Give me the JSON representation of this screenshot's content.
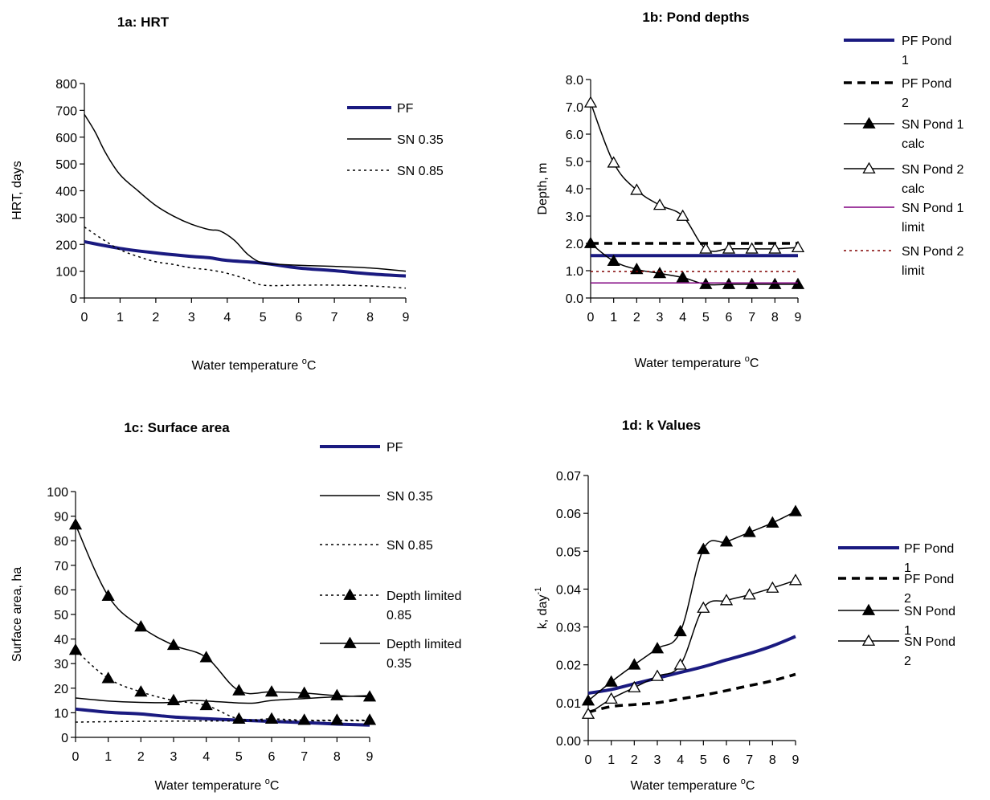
{
  "colors": {
    "pf": "#1a1a80",
    "black": "#000000",
    "sn_limit_1": "#800080",
    "sn_limit_2": "#800000"
  },
  "chart_data": [
    {
      "id": "1a",
      "type": "line",
      "title": "1a:  HRT",
      "xlabel": "Water temperature",
      "xlabel_unit": "oC",
      "ylabel": "HRT, days",
      "xlim": [
        0,
        9
      ],
      "ylim": [
        0,
        800
      ],
      "xticks": [
        "0",
        "1",
        "2",
        "3",
        "4",
        "5",
        "6",
        "7",
        "8",
        "9"
      ],
      "yticks": [
        "0",
        "100",
        "200",
        "300",
        "400",
        "500",
        "600",
        "700",
        "800"
      ],
      "series": [
        {
          "name": "PF",
          "style": "thick-blue",
          "x": [
            0,
            1,
            2,
            3,
            3.5,
            4,
            5,
            6,
            7,
            8,
            9
          ],
          "y": [
            210,
            185,
            168,
            155,
            150,
            140,
            130,
            112,
            102,
            90,
            82
          ]
        },
        {
          "name": "SN 0.35",
          "style": "solid",
          "x": [
            0,
            0.3,
            0.6,
            1,
            1.5,
            2,
            2.5,
            3,
            3.5,
            3.8,
            4.2,
            4.6,
            5,
            5.5,
            6,
            7,
            8,
            9
          ],
          "y": [
            685,
            620,
            540,
            460,
            400,
            345,
            305,
            275,
            255,
            250,
            215,
            160,
            130,
            125,
            122,
            118,
            112,
            100
          ]
        },
        {
          "name": "SN 0.85",
          "style": "dotted",
          "x": [
            0,
            0.5,
            1,
            1.5,
            2,
            2.5,
            3,
            3.5,
            4,
            4.5,
            5,
            6,
            7,
            8,
            9
          ],
          "y": [
            265,
            220,
            180,
            155,
            135,
            125,
            112,
            105,
            92,
            72,
            48,
            48,
            48,
            45,
            37
          ]
        }
      ]
    },
    {
      "id": "1b",
      "type": "line",
      "title": "1b: Pond depths",
      "xlabel": "Water temperature",
      "xlabel_unit": "oC",
      "ylabel": "Depth,  m",
      "xlim": [
        0,
        9
      ],
      "ylim": [
        0,
        8
      ],
      "xticks": [
        "0",
        "1",
        "2",
        "3",
        "4",
        "5",
        "6",
        "7",
        "8",
        "9"
      ],
      "yticks": [
        "0.0",
        "1.0",
        "2.0",
        "3.0",
        "4.0",
        "5.0",
        "6.0",
        "7.0",
        "8.0"
      ],
      "series": [
        {
          "name": "PF Pond 1",
          "style": "thick-blue",
          "x": [
            0,
            9
          ],
          "y": [
            1.55,
            1.55
          ]
        },
        {
          "name": "PF Pond 2",
          "style": "thick-dashed",
          "x": [
            0,
            9
          ],
          "y": [
            2.0,
            2.0
          ]
        },
        {
          "name": "SN Pond 1 calc",
          "style": "filled-triangle",
          "x": [
            0,
            1,
            2,
            3,
            4,
            5,
            6,
            7,
            8,
            9
          ],
          "y": [
            2.0,
            1.35,
            1.05,
            0.9,
            0.75,
            0.5,
            0.5,
            0.5,
            0.5,
            0.5
          ]
        },
        {
          "name": "SN Pond 2 calc",
          "style": "open-triangle",
          "x": [
            0,
            1,
            2,
            3,
            4,
            5,
            6,
            7,
            8,
            9
          ],
          "y": [
            7.15,
            4.95,
            3.95,
            3.4,
            3.0,
            1.8,
            1.8,
            1.8,
            1.8,
            1.85
          ]
        },
        {
          "name": "SN Pond 1 limit",
          "style": "thin-purple",
          "x": [
            0,
            9
          ],
          "y": [
            0.55,
            0.55
          ]
        },
        {
          "name": "SN Pond 2 limit",
          "style": "dotted-maroon",
          "x": [
            0,
            9
          ],
          "y": [
            0.97,
            0.97
          ]
        }
      ]
    },
    {
      "id": "1c",
      "type": "line",
      "title": "1c: Surface area",
      "xlabel": "Water temperature",
      "xlabel_unit": "oC",
      "ylabel": "Surface area, ha",
      "xlim": [
        0,
        9
      ],
      "ylim": [
        0,
        100
      ],
      "xticks": [
        "0",
        "1",
        "2",
        "3",
        "4",
        "5",
        "6",
        "7",
        "8",
        "9"
      ],
      "yticks": [
        "0",
        "10",
        "20",
        "30",
        "40",
        "50",
        "60",
        "70",
        "80",
        "90",
        "100"
      ],
      "series": [
        {
          "name": "PF",
          "style": "thick-blue",
          "x": [
            0,
            1,
            2,
            3,
            4,
            5,
            6,
            7,
            8,
            9
          ],
          "y": [
            11.5,
            10.2,
            9.5,
            8.3,
            7.6,
            7.0,
            6.5,
            6.0,
            5.4,
            5.0
          ]
        },
        {
          "name": "SN 0.35",
          "style": "solid",
          "x": [
            0,
            1,
            2,
            3,
            3.5,
            4,
            5,
            5.5,
            6,
            7,
            8,
            9
          ],
          "y": [
            16,
            14.8,
            14.2,
            14.2,
            15,
            14.8,
            14,
            14,
            15,
            15.8,
            16.5,
            17
          ]
        },
        {
          "name": "SN 0.85",
          "style": "dotted",
          "x": [
            0,
            3,
            9
          ],
          "y": [
            6.2,
            6.6,
            6.8
          ]
        },
        {
          "name": "Depth limited 0.85",
          "style": "dotted-filled-triangle",
          "x": [
            0,
            1,
            2,
            3,
            4,
            5,
            6,
            7,
            8,
            9
          ],
          "y": [
            35.5,
            24,
            18.5,
            15,
            13,
            7.5,
            7.5,
            7,
            7,
            7
          ]
        },
        {
          "name": "Depth limited 0.35",
          "style": "filled-triangle",
          "x": [
            0,
            1,
            2,
            3,
            4,
            5,
            6,
            7,
            8,
            9
          ],
          "y": [
            86.5,
            57.5,
            45,
            37.5,
            32.5,
            19,
            18.5,
            18,
            17,
            16.5
          ]
        }
      ]
    },
    {
      "id": "1d",
      "type": "line",
      "title": "1d: k Values",
      "xlabel": "Water temperature",
      "xlabel_unit": "oC",
      "ylabel": "k, day",
      "ylabel_sup": "-1",
      "xlim": [
        0,
        9
      ],
      "ylim": [
        0,
        0.07
      ],
      "xticks": [
        "0",
        "1",
        "2",
        "3",
        "4",
        "5",
        "6",
        "7",
        "8",
        "9"
      ],
      "yticks": [
        "0.00",
        "0.01",
        "0.02",
        "0.03",
        "0.04",
        "0.05",
        "0.06",
        "0.07"
      ],
      "series": [
        {
          "name": "PF Pond 1",
          "style": "thick-blue",
          "x": [
            0,
            1,
            2,
            3,
            4,
            5,
            6,
            7,
            8,
            9
          ],
          "y": [
            0.0125,
            0.0135,
            0.015,
            0.0165,
            0.018,
            0.0195,
            0.0213,
            0.023,
            0.025,
            0.0275
          ]
        },
        {
          "name": "PF Pond 2",
          "style": "thick-dashed",
          "x": [
            0,
            1,
            2,
            3,
            4,
            5,
            6,
            7,
            8,
            9
          ],
          "y": [
            0.0075,
            0.009,
            0.0095,
            0.01,
            0.011,
            0.012,
            0.0132,
            0.0145,
            0.0158,
            0.0175
          ]
        },
        {
          "name": "SN Pond 1",
          "style": "filled-triangle",
          "x": [
            0,
            1,
            2,
            3,
            4,
            5,
            6,
            7,
            8,
            9
          ],
          "y": [
            0.0105,
            0.0155,
            0.02,
            0.0243,
            0.0288,
            0.0505,
            0.0525,
            0.055,
            0.0575,
            0.0605
          ]
        },
        {
          "name": "SN Pond 2",
          "style": "open-triangle",
          "x": [
            0,
            1,
            2,
            3,
            4,
            5,
            6,
            7,
            8,
            9
          ],
          "y": [
            0.007,
            0.011,
            0.014,
            0.017,
            0.02,
            0.035,
            0.037,
            0.0385,
            0.0403,
            0.0423
          ]
        }
      ]
    }
  ]
}
